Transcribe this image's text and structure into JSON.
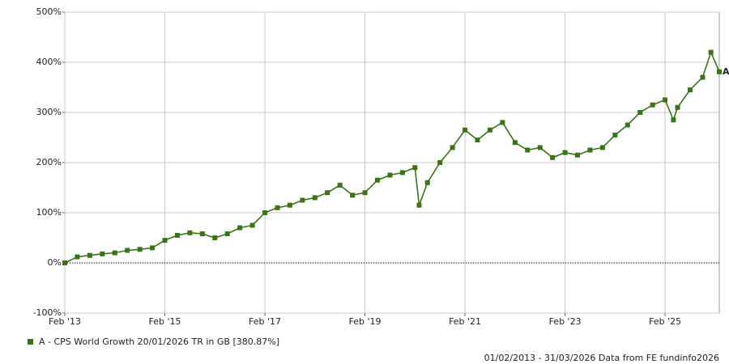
{
  "chart_data": {
    "type": "line",
    "x": [
      "Feb '13",
      "May '13",
      "Aug '13",
      "Nov '13",
      "Feb '14",
      "May '14",
      "Aug '14",
      "Nov '14",
      "Feb '15",
      "May '15",
      "Aug '15",
      "Nov '15",
      "Feb '16",
      "May '16",
      "Aug '16",
      "Nov '16",
      "Feb '17",
      "May '17",
      "Aug '17",
      "Nov '17",
      "Feb '18",
      "May '18",
      "Aug '18",
      "Nov '18",
      "Feb '19",
      "May '19",
      "Aug '19",
      "Nov '19",
      "Feb '20",
      "Mar '20",
      "May '20",
      "Aug '20",
      "Nov '20",
      "Feb '21",
      "May '21",
      "Aug '21",
      "Nov '21",
      "Feb '22",
      "May '22",
      "Aug '22",
      "Nov '22",
      "Feb '23",
      "May '23",
      "Aug '23",
      "Nov '23",
      "Feb '24",
      "May '24",
      "Aug '24",
      "Nov '24",
      "Feb '25",
      "Apr '25",
      "May '25",
      "Aug '25",
      "Nov '25",
      "Jan '26",
      "Mar '26"
    ],
    "series": [
      {
        "name": "A - CPS World Growth 20/01/2026 TR in GB [380.87%]",
        "color": "#3b7317",
        "values": [
          0,
          12,
          15,
          18,
          20,
          25,
          27,
          30,
          45,
          55,
          60,
          58,
          50,
          58,
          70,
          75,
          100,
          110,
          115,
          125,
          130,
          140,
          155,
          135,
          140,
          165,
          175,
          180,
          190,
          115,
          160,
          200,
          230,
          265,
          245,
          265,
          280,
          240,
          225,
          230,
          210,
          220,
          215,
          225,
          230,
          255,
          275,
          300,
          315,
          325,
          285,
          310,
          345,
          370,
          420,
          381
        ]
      }
    ],
    "end_label": "A",
    "xlim": [
      "Feb '13",
      "Mar '26"
    ],
    "xticks": [
      "Feb '13",
      "Feb '15",
      "Feb '17",
      "Feb '19",
      "Feb '21",
      "Feb '23",
      "Feb '25"
    ],
    "ylim": [
      -100,
      500
    ],
    "yticks": [
      {
        "value": -100,
        "label": "-100%"
      },
      {
        "value": 0,
        "label": "0%"
      },
      {
        "value": 100,
        "label": "100%"
      },
      {
        "value": 200,
        "label": "200%"
      },
      {
        "value": 300,
        "label": "300%"
      },
      {
        "value": 400,
        "label": "400%"
      },
      {
        "value": 500,
        "label": "500%"
      }
    ],
    "grid": true,
    "footer": "01/02/2013 - 31/03/2026 Data from FE fundinfo2026"
  }
}
